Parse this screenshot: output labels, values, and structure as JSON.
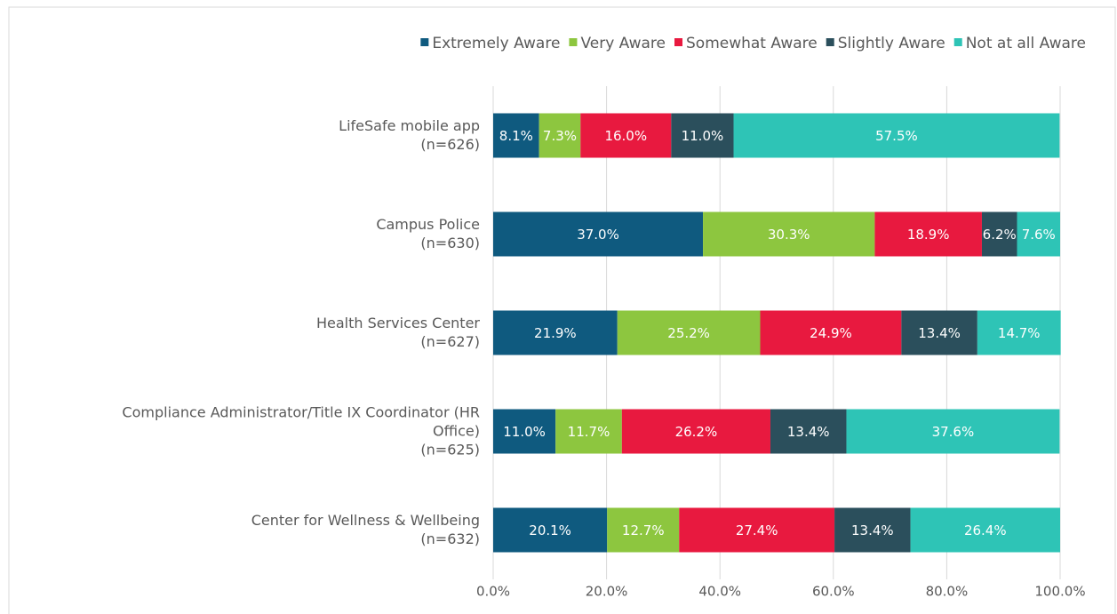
{
  "chart_data": {
    "type": "stacked-bar-horizontal",
    "categories": [
      "LifeSafe mobile app\n(n=626)",
      "Campus Police\n(n=630)",
      "Health Services Center\n(n=627)",
      "Compliance Administrator/Title IX Coordinator (HR\nOffice)\n(n=625)",
      "Center for Wellness & Wellbeing\n(n=632)"
    ],
    "series": [
      {
        "name": "Extremely Aware",
        "color": "#0f5a7f",
        "values": [
          8.1,
          37.0,
          21.9,
          11.0,
          20.1
        ],
        "value_labels": [
          "8.1%",
          "37.0%",
          "21.9%",
          "11.0%",
          "20.1%"
        ]
      },
      {
        "name": "Very Aware",
        "color": "#8dc63f",
        "values": [
          7.3,
          30.3,
          25.2,
          11.7,
          12.7
        ],
        "value_labels": [
          "7.3%",
          "30.3%",
          "25.2%",
          "11.7%",
          "12.7%"
        ]
      },
      {
        "name": "Somewhat Aware",
        "color": "#e8193f",
        "values": [
          16.0,
          18.9,
          24.9,
          26.2,
          27.4
        ],
        "value_labels": [
          "16.0%",
          "18.9%",
          "24.9%",
          "26.2%",
          "27.4%"
        ]
      },
      {
        "name": "Slightly Aware",
        "color": "#2b4f5c",
        "values": [
          11.0,
          6.2,
          13.4,
          13.4,
          13.4
        ],
        "value_labels": [
          "11.0%",
          "6.2%",
          "13.4%",
          "13.4%",
          "13.4%"
        ]
      },
      {
        "name": "Not at all Aware",
        "color": "#2ec4b6",
        "values": [
          57.5,
          7.6,
          14.7,
          37.6,
          26.4
        ],
        "value_labels": [
          "57.5%",
          "7.6%",
          "14.7%",
          "37.6%",
          "26.4%"
        ]
      }
    ],
    "xlim": [
      0,
      100
    ],
    "xticks": [
      {
        "value": 0,
        "label": "0.0%"
      },
      {
        "value": 20,
        "label": "20.0%"
      },
      {
        "value": 40,
        "label": "40.0%"
      },
      {
        "value": 60,
        "label": "60.0%"
      },
      {
        "value": 80,
        "label": "80.0%"
      },
      {
        "value": 100,
        "label": "100.0%"
      }
    ],
    "grid": true,
    "legend": "top"
  }
}
